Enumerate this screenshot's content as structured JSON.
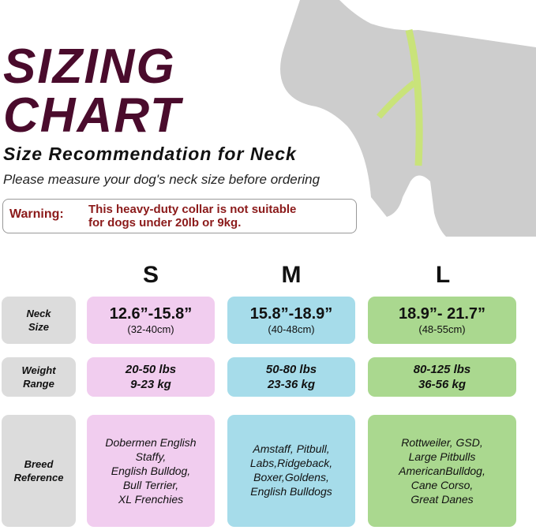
{
  "title_line1": "SIZING",
  "title_line2": "CHART",
  "subtitle": "Size Recommendation for Neck",
  "instruction": "Please measure your dog's neck size before ordering",
  "warning": {
    "label": "Warning:",
    "line1": "This heavy-duty collar is not suitable",
    "line2": "for dogs under 20lb or 9kg."
  },
  "colors": {
    "title": "#4a0b2c",
    "warning": "#8b1a1a",
    "small": "#f1cdef",
    "medium": "#a6dcea",
    "large": "#aad88f",
    "label": "#dcdcdc"
  },
  "row_labels": {
    "neck": [
      "Neck",
      "Size"
    ],
    "weight": [
      "Weight",
      "Range"
    ],
    "breed": [
      "Breed",
      "Reference"
    ]
  },
  "sizes": [
    {
      "name": "S",
      "neck_in": "12.6”-15.8”",
      "neck_cm": "(32-40cm)",
      "lbs": "20-50 lbs",
      "kg": "9-23 kg",
      "breeds": [
        "Dobermen English",
        "Staffy,",
        "English Bulldog,",
        "Bull Terrier,",
        "XL Frenchies"
      ]
    },
    {
      "name": "M",
      "neck_in": "15.8”-18.9”",
      "neck_cm": "(40-48cm)",
      "lbs": "50-80 lbs",
      "kg": "23-36 kg",
      "breeds": [
        "Amstaff, Pitbull,",
        "Labs,Ridgeback,",
        "Boxer,Goldens,",
        "English Bulldogs"
      ]
    },
    {
      "name": "L",
      "neck_in": "18.9”- 21.7”",
      "neck_cm": "(48-55cm)",
      "lbs": "80-125 lbs",
      "kg": "36-56 kg",
      "breeds": [
        "Rottweiler, GSD,",
        "Large Pitbulls",
        "AmericanBulldog,",
        "Cane Corso,",
        "Great Danes"
      ]
    }
  ]
}
